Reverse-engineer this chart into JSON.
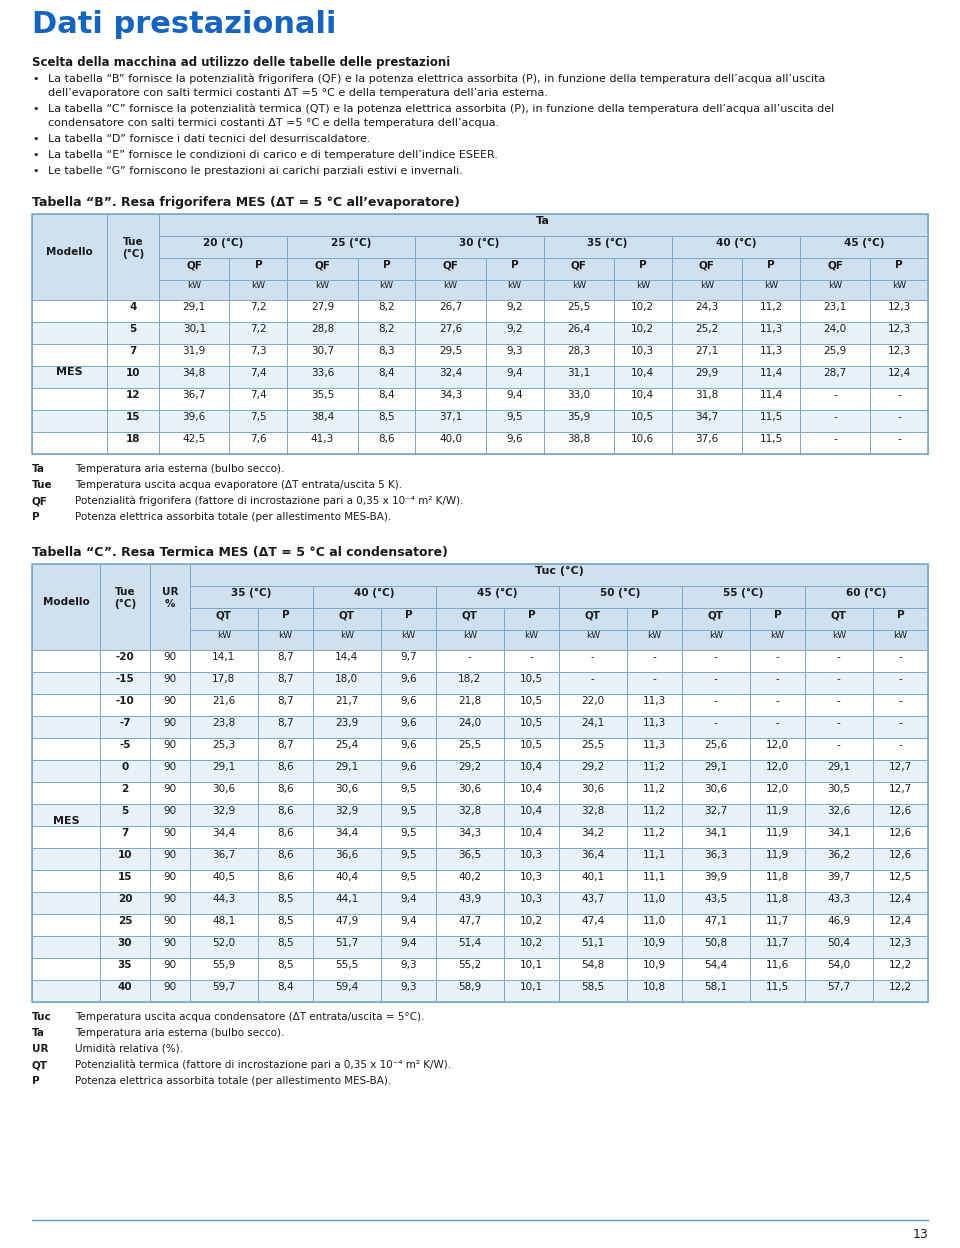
{
  "title": "Dati prestazionali",
  "intro_bold": "Scelta della macchina ad utilizzo delle tabelle delle prestazioni",
  "bullets": [
    "La tabella “B” fornisce la potenzialità frigorifera (QF) e la potenza elettrica assorbita (P), in funzione della temperatura dell’acqua all’uscita dell’evaporatore con salti termici costanti ΔT =5 °C e della temperatura dell’aria esterna.",
    "La tabella “C” fornisce la potenzialità termica (QT) e la potenza elettrica assorbita (P), in funzione della temperatura dell’acqua all’uscita del condensatore con salti termici costanti ΔT =5 °C e della temperatura dell’acqua.",
    "La tabella “D” fornisce i dati tecnici del desurriscaldatore.",
    "La tabella “E” fornisce le condizioni di carico e di temperature dell’indice ESEER.",
    "Le tabelle “G” forniscono le prestazioni ai carichi parziali estivi e invernali."
  ],
  "table_b_title": "Tabella “B”. Resa frigorifera MES (ΔT = 5 °C all’evaporatore)",
  "table_b_ta_cols": [
    "20 (°C)",
    "25 (°C)",
    "30 (°C)",
    "35 (°C)",
    "40 (°C)",
    "45 (°C)"
  ],
  "table_b_rows": [
    [
      "MES",
      4,
      29.1,
      7.2,
      27.9,
      8.2,
      26.7,
      9.2,
      25.5,
      10.2,
      24.3,
      11.2,
      23.1,
      12.3
    ],
    [
      "MES",
      5,
      30.1,
      7.2,
      28.8,
      8.2,
      27.6,
      9.2,
      26.4,
      10.2,
      25.2,
      11.3,
      24.0,
      12.3
    ],
    [
      "MES",
      7,
      31.9,
      7.3,
      30.7,
      8.3,
      29.5,
      9.3,
      28.3,
      10.3,
      27.1,
      11.3,
      25.9,
      12.3
    ],
    [
      "MES",
      10,
      34.8,
      7.4,
      33.6,
      8.4,
      32.4,
      9.4,
      31.1,
      10.4,
      29.9,
      11.4,
      28.7,
      12.4
    ],
    [
      "MES",
      12,
      36.7,
      7.4,
      35.5,
      8.4,
      34.3,
      9.4,
      33.0,
      10.4,
      31.8,
      11.4,
      null,
      null
    ],
    [
      "MES",
      15,
      39.6,
      7.5,
      38.4,
      8.5,
      37.1,
      9.5,
      35.9,
      10.5,
      34.7,
      11.5,
      null,
      null
    ],
    [
      "MES",
      18,
      42.5,
      7.6,
      41.3,
      8.6,
      40.0,
      9.6,
      38.8,
      10.6,
      37.6,
      11.5,
      null,
      null
    ]
  ],
  "table_b_notes": [
    [
      "Ta",
      "Temperatura aria esterna (bulbo secco)."
    ],
    [
      "Tue",
      "Temperatura uscita acqua evaporatore (ΔT entrata/uscita 5 K)."
    ],
    [
      "QF",
      "Potenzialità frigorifera (fattore di incrostazione pari a 0,35 x 10⁻⁴ m² K/W)."
    ],
    [
      "P",
      "Potenza elettrica assorbita totale (per allestimento MES-BA)."
    ]
  ],
  "table_c_title": "Tabella “C”. Resa Termica MES (ΔT = 5 °C al condensatore)",
  "table_c_tuc_cols": [
    "35 (°C)",
    "40 (°C)",
    "45 (°C)",
    "50 (°C)",
    "55 (°C)",
    "60 (°C)"
  ],
  "table_c_rows": [
    [
      "MES",
      -20,
      90,
      14.1,
      8.7,
      14.4,
      9.7,
      null,
      null,
      null,
      null,
      null,
      null,
      null,
      null
    ],
    [
      "MES",
      -15,
      90,
      17.8,
      8.7,
      18.0,
      9.6,
      18.2,
      10.5,
      null,
      null,
      null,
      null,
      null,
      null
    ],
    [
      "MES",
      -10,
      90,
      21.6,
      8.7,
      21.7,
      9.6,
      21.8,
      10.5,
      22.0,
      11.3,
      null,
      null,
      null,
      null
    ],
    [
      "MES",
      -7,
      90,
      23.8,
      8.7,
      23.9,
      9.6,
      24.0,
      10.5,
      24.1,
      11.3,
      null,
      null,
      null,
      null
    ],
    [
      "MES",
      -5,
      90,
      25.3,
      8.7,
      25.4,
      9.6,
      25.5,
      10.5,
      25.5,
      11.3,
      25.6,
      12.0,
      null,
      null
    ],
    [
      "MES",
      0,
      90,
      29.1,
      8.6,
      29.1,
      9.6,
      29.2,
      10.4,
      29.2,
      11.2,
      29.1,
      12.0,
      29.1,
      12.7
    ],
    [
      "MES",
      2,
      90,
      30.6,
      8.6,
      30.6,
      9.5,
      30.6,
      10.4,
      30.6,
      11.2,
      30.6,
      12.0,
      30.5,
      12.7
    ],
    [
      "MES",
      5,
      90,
      32.9,
      8.6,
      32.9,
      9.5,
      32.8,
      10.4,
      32.8,
      11.2,
      32.7,
      11.9,
      32.6,
      12.6
    ],
    [
      "MES",
      7,
      90,
      34.4,
      8.6,
      34.4,
      9.5,
      34.3,
      10.4,
      34.2,
      11.2,
      34.1,
      11.9,
      34.1,
      12.6
    ],
    [
      "MES",
      10,
      90,
      36.7,
      8.6,
      36.6,
      9.5,
      36.5,
      10.3,
      36.4,
      11.1,
      36.3,
      11.9,
      36.2,
      12.6
    ],
    [
      "MES",
      15,
      90,
      40.5,
      8.6,
      40.4,
      9.5,
      40.2,
      10.3,
      40.1,
      11.1,
      39.9,
      11.8,
      39.7,
      12.5
    ],
    [
      "MES",
      20,
      90,
      44.3,
      8.5,
      44.1,
      9.4,
      43.9,
      10.3,
      43.7,
      11.0,
      43.5,
      11.8,
      43.3,
      12.4
    ],
    [
      "MES",
      25,
      90,
      48.1,
      8.5,
      47.9,
      9.4,
      47.7,
      10.2,
      47.4,
      11.0,
      47.1,
      11.7,
      46.9,
      12.4
    ],
    [
      "MES",
      30,
      90,
      52.0,
      8.5,
      51.7,
      9.4,
      51.4,
      10.2,
      51.1,
      10.9,
      50.8,
      11.7,
      50.4,
      12.3
    ],
    [
      "MES",
      35,
      90,
      55.9,
      8.5,
      55.5,
      9.3,
      55.2,
      10.1,
      54.8,
      10.9,
      54.4,
      11.6,
      54.0,
      12.2
    ],
    [
      "MES",
      40,
      90,
      59.7,
      8.4,
      59.4,
      9.3,
      58.9,
      10.1,
      58.5,
      10.8,
      58.1,
      11.5,
      57.7,
      12.2
    ]
  ],
  "table_c_notes": [
    [
      "Tuc",
      "Temperatura uscita acqua condensatore (ΔT entrata/uscita = 5°C)."
    ],
    [
      "Ta",
      "Temperatura aria esterna (bulbo secco)."
    ],
    [
      "UR",
      "Umidità relativa (%)."
    ],
    [
      "QT",
      "Potenzialità termica (fattore di incrostazione pari a 0,35 x 10⁻⁴ m² K/W)."
    ],
    [
      "P",
      "Potenza elettrica assorbita totale (per allestimento MES-BA)."
    ]
  ],
  "page_number": "13",
  "header_bg": "#cfe0f0",
  "row_alt_bg": "#e8f2fa",
  "row_bg": "#ffffff",
  "border_color": "#7aaac8",
  "title_color": "#1565c0",
  "text_color": "#1a1a1a",
  "footer_line_color": "#5a9ac8"
}
